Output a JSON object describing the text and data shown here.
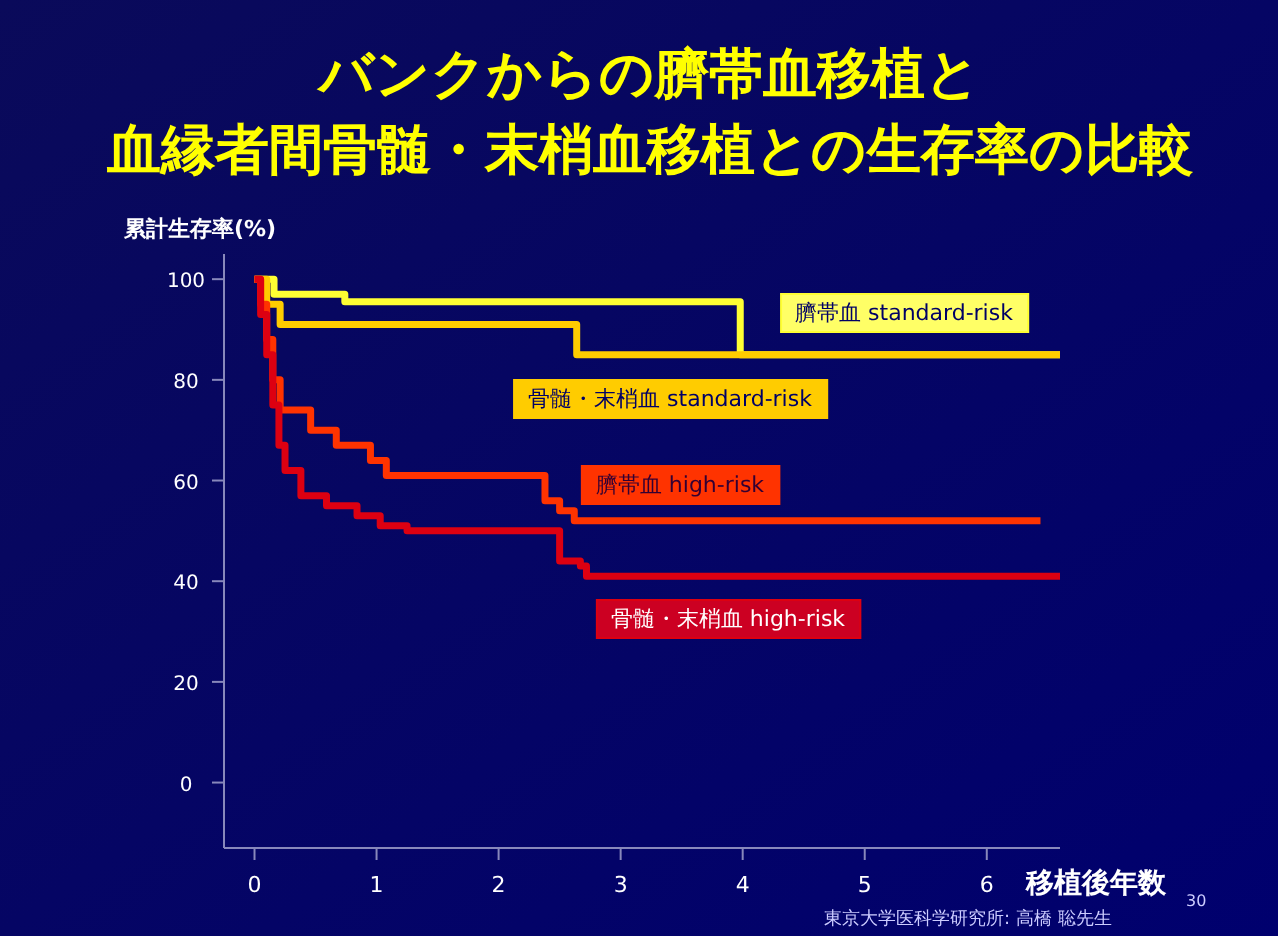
{
  "chart_data": {
    "type": "step",
    "title": "バンクからの臍帯血移植と",
    "subtitle": "血縁者間骨髄・末梢血移植との生存率の比較",
    "ylabel": "累計生存率(%)",
    "xlabel": "移植後年数",
    "annotations": [
      "東京大学医科学研究所: 高橋 聡先生",
      "30"
    ],
    "xlim": [
      -0.25,
      6.6
    ],
    "xticks": [
      0,
      1,
      2,
      3,
      4,
      5,
      6
    ],
    "ylim": [
      -13,
      105
    ],
    "yticks": [
      0,
      20,
      40,
      60,
      80,
      100
    ],
    "grid": false,
    "marker": "none",
    "line_style": "solid",
    "series": [
      {
        "name": "臍帯血 standard-risk",
        "color": "#ffff33",
        "x": [
          0,
          0.16,
          0.74,
          3.98,
          6.6
        ],
        "values": [
          100,
          97,
          95.5,
          85,
          85
        ]
      },
      {
        "name": "骨髄・末梢血 standard-risk",
        "color": "#ffcc00",
        "x": [
          0,
          0.1,
          0.21,
          2.64,
          6.6
        ],
        "values": [
          100,
          95,
          91,
          85,
          85
        ]
      },
      {
        "name": "臍帯血 high-risk",
        "color": "#ff3300",
        "x": [
          0,
          0.05,
          0.1,
          0.15,
          0.21,
          0.46,
          0.67,
          0.95,
          1.08,
          2.38,
          2.5,
          2.62,
          6.44
        ],
        "values": [
          100,
          95,
          88,
          80,
          74,
          70,
          67,
          64,
          61,
          56,
          54,
          52,
          52
        ]
      },
      {
        "name": "骨髄・末梢血 high-risk",
        "color": "#dd0011",
        "x": [
          0,
          0.05,
          0.1,
          0.15,
          0.2,
          0.25,
          0.38,
          0.59,
          0.84,
          1.03,
          1.25,
          2.5,
          2.67,
          2.72,
          6.6
        ],
        "values": [
          100,
          93,
          85,
          75,
          67,
          62,
          57,
          55,
          53,
          51,
          50,
          44,
          43,
          41,
          41
        ]
      }
    ]
  }
}
